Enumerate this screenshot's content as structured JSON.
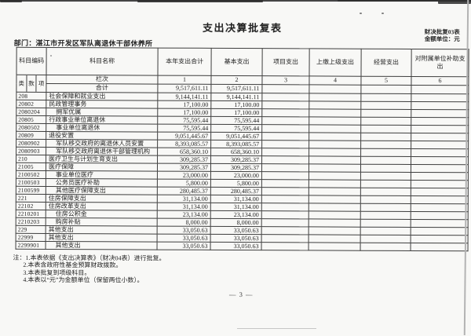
{
  "header": {
    "title": "支出决算批复表",
    "form_code": "财决批复03表",
    "unit_note": "金额单位：元",
    "department": "部门：湛江市开发区军队离退休干部休养所"
  },
  "table": {
    "col_headers": {
      "code": "科目编码",
      "name": "科目名称",
      "cols": [
        "本年支出合计",
        "基本支出",
        "项目支出",
        "上缴上级支出",
        "经营支出",
        "对附属单位补助支出"
      ]
    },
    "code_levels": [
      "类",
      "款",
      "项"
    ],
    "lanci_label": "栏次",
    "col_numbers": [
      "1",
      "2",
      "3",
      "4",
      "5",
      "6"
    ],
    "total_row": {
      "name": "合计",
      "values": [
        "9,517,611.11",
        "9,517,611.11",
        "",
        "",
        "",
        ""
      ]
    },
    "rows": [
      {
        "code": "208",
        "name": "社会保障和就业支出",
        "indent": 0,
        "values": [
          "9,144,141.11",
          "9,144,141.11",
          "",
          "",
          "",
          ""
        ]
      },
      {
        "code": "20802",
        "name": "民政管理事务",
        "indent": 0,
        "values": [
          "17,100.00",
          "17,100.00",
          "",
          "",
          "",
          ""
        ]
      },
      {
        "code": "2080204",
        "name": "拥军优属",
        "indent": 1,
        "values": [
          "17,100.00",
          "17,100.00",
          "",
          "",
          "",
          ""
        ]
      },
      {
        "code": "20805",
        "name": "行政事业单位离退休",
        "indent": 0,
        "values": [
          "75,595.44",
          "75,595.44",
          "",
          "",
          "",
          ""
        ]
      },
      {
        "code": "2080502",
        "name": "事业单位离退休",
        "indent": 1,
        "values": [
          "75,595.44",
          "75,595.44",
          "",
          "",
          "",
          ""
        ]
      },
      {
        "code": "20809",
        "name": "退役安置",
        "indent": 0,
        "values": [
          "9,051,445.67",
          "9,051,445.67",
          "",
          "",
          "",
          ""
        ]
      },
      {
        "code": "2080902",
        "name": "军队移交政府的离退休人员安置",
        "indent": 1,
        "values": [
          "8,393,085.57",
          "8,393,085.57",
          "",
          "",
          "",
          ""
        ]
      },
      {
        "code": "2080903",
        "name": "军队移交政府离退休干部管理机构",
        "indent": 1,
        "values": [
          "658,360.10",
          "658,360.10",
          "",
          "",
          "",
          ""
        ]
      },
      {
        "code": "210",
        "name": "医疗卫生与计划生育支出",
        "indent": 0,
        "values": [
          "309,285.37",
          "309,285.37",
          "",
          "",
          "",
          ""
        ]
      },
      {
        "code": "21005",
        "name": "医疗保障",
        "indent": 0,
        "values": [
          "309,285.37",
          "309,285.37",
          "",
          "",
          "",
          ""
        ]
      },
      {
        "code": "2100502",
        "name": "事业单位医疗",
        "indent": 1,
        "values": [
          "23,000.00",
          "23,000.00",
          "",
          "",
          "",
          ""
        ]
      },
      {
        "code": "2100503",
        "name": "公务员医疗补助",
        "indent": 1,
        "values": [
          "5,800.00",
          "5,800.00",
          "",
          "",
          "",
          ""
        ]
      },
      {
        "code": "2100599",
        "name": "其他医疗保障支出",
        "indent": 1,
        "values": [
          "280,485.37",
          "280,485.37",
          "",
          "",
          "",
          ""
        ]
      },
      {
        "code": "221",
        "name": "住房保障支出",
        "indent": 0,
        "values": [
          "31,134.00",
          "31,134.00",
          "",
          "",
          "",
          ""
        ]
      },
      {
        "code": "22102",
        "name": "住房改革支出",
        "indent": 0,
        "values": [
          "31,134.00",
          "31,134.00",
          "",
          "",
          "",
          ""
        ]
      },
      {
        "code": "2210201",
        "name": "住房公积金",
        "indent": 1,
        "values": [
          "23,134.00",
          "23,134.00",
          "",
          "",
          "",
          ""
        ]
      },
      {
        "code": "2210203",
        "name": "购房补贴",
        "indent": 1,
        "values": [
          "8,000.00",
          "8,000.00",
          "",
          "",
          "",
          ""
        ]
      },
      {
        "code": "229",
        "name": "其他支出",
        "indent": 0,
        "values": [
          "33,050.63",
          "33,050.63",
          "",
          "",
          "",
          ""
        ]
      },
      {
        "code": "22999",
        "name": "其他支出",
        "indent": 0,
        "values": [
          "33,050.63",
          "33,050.63",
          "",
          "",
          "",
          ""
        ]
      },
      {
        "code": "2299901",
        "name": "其他支出",
        "indent": 1,
        "values": [
          "33,050.63",
          "33,050.63",
          "",
          "",
          "",
          ""
        ]
      }
    ]
  },
  "notes": [
    "注：1.本表依据《支出决算表》（财决04表）进行批复。",
    "2.本表含政府性基金预算财政拨款。",
    "3.本表批复到项级科目。",
    "4.本表以“元”为金额单位（保留两位小数）。"
  ],
  "footer": {
    "page_number": "— 3 —"
  },
  "colors": {
    "paper": "#f8f8f6",
    "ink": "#1f1f1f",
    "table_border": "#3e3e3e",
    "scan_edge": "#2c2c2c"
  }
}
